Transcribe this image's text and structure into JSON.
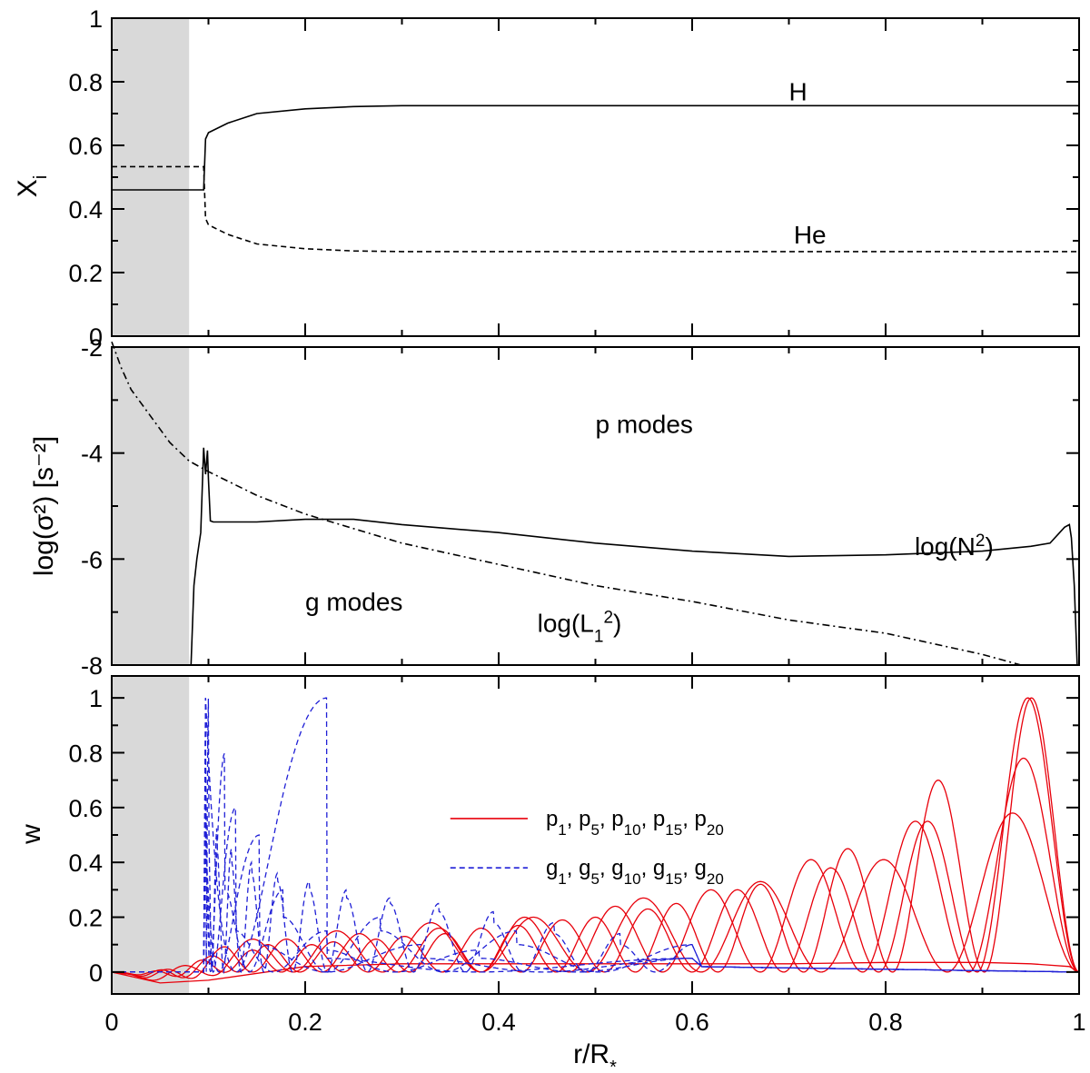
{
  "chart_data": [
    {
      "type": "line",
      "panel": "top",
      "ylabel": "X",
      "ylabel_sub": "i",
      "xlim": [
        0,
        1.0
      ],
      "ylim": [
        0,
        1
      ],
      "yticks": [
        0,
        0.2,
        0.4,
        0.6,
        0.8,
        1
      ],
      "ytick_labels": [
        "0",
        "0.2",
        "0.4",
        "0.6",
        "0.8",
        "1"
      ],
      "convective_core_r": 0.08,
      "series": [
        {
          "name": "H",
          "style": "solid",
          "color": "#000000",
          "x": [
            0,
            0.08,
            0.095,
            0.097,
            0.1,
            0.12,
            0.15,
            0.2,
            0.25,
            0.3,
            0.5,
            0.8,
            1.0
          ],
          "values": [
            0.46,
            0.46,
            0.46,
            0.62,
            0.64,
            0.67,
            0.7,
            0.715,
            0.722,
            0.725,
            0.725,
            0.725,
            0.725
          ]
        },
        {
          "name": "He",
          "style": "dashed",
          "color": "#000000",
          "x": [
            0,
            0.08,
            0.095,
            0.097,
            0.1,
            0.12,
            0.15,
            0.2,
            0.25,
            0.3,
            0.5,
            0.8,
            1.0
          ],
          "values": [
            0.533,
            0.533,
            0.533,
            0.37,
            0.35,
            0.32,
            0.29,
            0.275,
            0.268,
            0.266,
            0.266,
            0.266,
            0.266
          ]
        }
      ],
      "annotations": [
        {
          "text": "H",
          "x": 0.7,
          "y": 0.77
        },
        {
          "text": "He",
          "x": 0.705,
          "y": 0.32
        }
      ]
    },
    {
      "type": "line",
      "panel": "middle",
      "ylabel": "log(σ²) [s⁻²]",
      "xlim": [
        0,
        1.0
      ],
      "ylim": [
        -8,
        -2
      ],
      "yticks": [
        -8,
        -6,
        -4,
        -2
      ],
      "ytick_labels": [
        "-8",
        "-6",
        "-4",
        "-2"
      ],
      "series": [
        {
          "name": "log(N²)",
          "style": "solid",
          "color": "#000000",
          "x": [
            0.082,
            0.085,
            0.088,
            0.092,
            0.095,
            0.097,
            0.099,
            0.1,
            0.102,
            0.105,
            0.12,
            0.15,
            0.2,
            0.25,
            0.3,
            0.4,
            0.5,
            0.6,
            0.7,
            0.8,
            0.9,
            0.95,
            0.97,
            0.985,
            0.99,
            0.992,
            0.995,
            0.998
          ],
          "values": [
            -8.0,
            -6.5,
            -6.0,
            -5.5,
            -3.9,
            -4.4,
            -3.95,
            -4.5,
            -5.28,
            -5.3,
            -5.3,
            -5.3,
            -5.25,
            -5.25,
            -5.35,
            -5.5,
            -5.7,
            -5.85,
            -5.95,
            -5.92,
            -5.85,
            -5.76,
            -5.7,
            -5.4,
            -5.35,
            -5.6,
            -6.5,
            -8.0
          ]
        },
        {
          "name": "log(L₁²)",
          "style": "dashdot",
          "color": "#000000",
          "x": [
            0.0,
            0.01,
            0.02,
            0.04,
            0.06,
            0.08,
            0.1,
            0.15,
            0.2,
            0.3,
            0.4,
            0.5,
            0.6,
            0.7,
            0.8,
            0.9,
            0.94
          ],
          "values": [
            -1.9,
            -2.4,
            -2.8,
            -3.3,
            -3.8,
            -4.15,
            -4.35,
            -4.8,
            -5.15,
            -5.7,
            -6.1,
            -6.5,
            -6.8,
            -7.15,
            -7.4,
            -7.8,
            -8.0
          ]
        }
      ],
      "annotations": [
        {
          "text": "p modes",
          "x": 0.5,
          "y": -3.45
        },
        {
          "text": "g modes",
          "x": 0.2,
          "y": -6.8
        },
        {
          "text": "log(N",
          "sup": "2",
          "close": ")",
          "x": 0.83,
          "y": -5.75
        },
        {
          "text": "log(L",
          "sub": "1",
          "sup": "2",
          "close": ")",
          "x": 0.44,
          "y": -7.2
        }
      ]
    },
    {
      "type": "line",
      "panel": "bottom",
      "ylabel": "w",
      "xlabel": "r/R",
      "xlabel_sub": "*",
      "xlim": [
        0,
        1.0
      ],
      "ylim": [
        -0.08,
        1.08
      ],
      "xticks": [
        0,
        0.2,
        0.4,
        0.6,
        0.8,
        1
      ],
      "xtick_labels": [
        "0",
        "0.2",
        "0.4",
        "0.6",
        "0.8",
        "1"
      ],
      "yticks": [
        0,
        0.2,
        0.4,
        0.6,
        0.8,
        1
      ],
      "ytick_labels": [
        "0",
        "0.2",
        "0.4",
        "0.6",
        "0.8",
        "1"
      ],
      "legend": {
        "location": "upper-center",
        "entries": [
          {
            "label": "p",
            "subs": [
              "1",
              "5",
              "10",
              "15",
              "20"
            ],
            "style": "solid",
            "color": "#e8000b"
          },
          {
            "label": "g",
            "subs": [
              "1",
              "5",
              "10",
              "15",
              "20"
            ],
            "style": "dashed",
            "color": "#1f1fd6"
          }
        ]
      },
      "series": [
        {
          "name": "p₁",
          "style": "solid",
          "color": "#e8000b",
          "x": [
            0,
            0.05,
            0.1,
            0.2,
            0.3,
            0.4,
            0.5,
            0.6,
            0.7,
            0.8,
            0.9,
            0.95,
            0.99,
            1.0
          ],
          "values": [
            0,
            -0.04,
            -0.03,
            0.02,
            0.03,
            0.03,
            0.03,
            0.03,
            0.03,
            0.035,
            0.035,
            0.03,
            0.02,
            0
          ]
        },
        {
          "name": "p₅",
          "style": "solid",
          "color": "#e8000b",
          "peak": [
            0.05,
            0.09,
            0.12,
            0.15,
            0.18,
            0.2,
            0.27,
            0.33,
            0.41,
            0.58
          ]
        },
        {
          "name": "p₁₀",
          "style": "solid",
          "color": "#e8000b",
          "peak": [
            0.05,
            0.08,
            0.1,
            0.12,
            0.14,
            0.16,
            0.2,
            0.24,
            0.3,
            0.41,
            0.55,
            0.78
          ]
        },
        {
          "name": "p₁₅",
          "style": "solid",
          "color": "#e8000b",
          "peak": [
            0.04,
            0.07,
            0.08,
            0.1,
            0.11,
            0.13,
            0.16,
            0.19,
            0.23,
            0.3,
            0.38,
            0.55,
            1.0
          ]
        },
        {
          "name": "p₂₀",
          "style": "solid",
          "color": "#e8000b",
          "peak": [
            0.03,
            0.05,
            0.07,
            0.08,
            0.1,
            0.12,
            0.14,
            0.17,
            0.2,
            0.25,
            0.32,
            0.45,
            0.7,
            1.0
          ]
        },
        {
          "name": "g₁",
          "style": "dashed",
          "color": "#1f1fd6",
          "peak": [
            1.0,
            0.05
          ]
        },
        {
          "name": "g₅",
          "style": "dashed",
          "color": "#1f1fd6",
          "peak": [
            1.0,
            0.53,
            0.45,
            0.4,
            0.36,
            0.33,
            0.3,
            0.27,
            0.25,
            0.22,
            0.18,
            0.14,
            0.1
          ]
        },
        {
          "name": "g₁₀",
          "style": "dashed",
          "color": "#1f1fd6",
          "peak": [
            0.8,
            0.3,
            0.2,
            0.15,
            0.1
          ]
        },
        {
          "name": "g₁₅",
          "style": "dashed",
          "color": "#1f1fd6",
          "peak": [
            0.6,
            0.15,
            0.08,
            0.05
          ]
        },
        {
          "name": "g₂₀",
          "style": "dashed",
          "color": "#1f1fd6",
          "peak": [
            0.5,
            0.1,
            0.05
          ]
        }
      ]
    }
  ]
}
